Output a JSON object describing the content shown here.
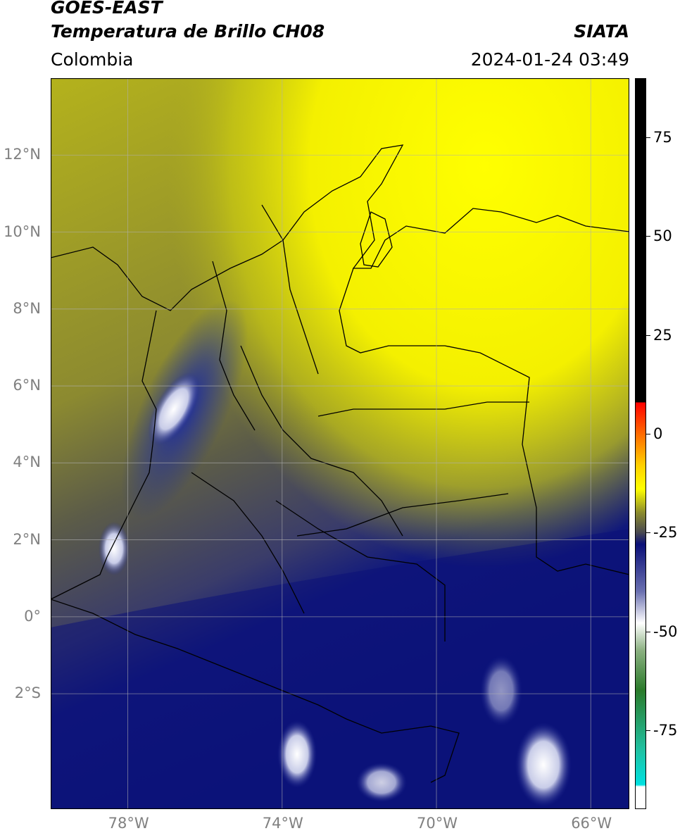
{
  "header": {
    "satellite": "GOES-EAST",
    "product": "Temperatura de Brillo CH08",
    "institution": "SIATA",
    "region": "Colombia",
    "datetime": "2024-01-24 03:49"
  },
  "map": {
    "lon_range": [
      -80,
      -65
    ],
    "lat_range": [
      -5,
      14
    ],
    "lat_ticks": [
      {
        "value": 12,
        "label": "12°N"
      },
      {
        "value": 10,
        "label": "10°N"
      },
      {
        "value": 8,
        "label": "8°N"
      },
      {
        "value": 6,
        "label": "6°N"
      },
      {
        "value": 4,
        "label": "4°N"
      },
      {
        "value": 2,
        "label": "2°N"
      },
      {
        "value": 0,
        "label": "0°"
      },
      {
        "value": -2,
        "label": "2°S"
      }
    ],
    "lon_ticks": [
      {
        "value": -78,
        "label": "78°W"
      },
      {
        "value": -74,
        "label": "74°W"
      },
      {
        "value": -70,
        "label": "70°W"
      },
      {
        "value": -66,
        "label": "66°W"
      }
    ],
    "grid": true,
    "colors": {
      "warm_yellow": "#ffff00",
      "olive": "#8a8a2c",
      "gray_olive": "#555745",
      "navy": "#0a0f78",
      "light_blue": "#9aa0d0",
      "white": "#ffffff",
      "green": "#5a8a4a"
    }
  },
  "colorbar": {
    "range": [
      -95,
      90
    ],
    "ticks": [
      {
        "value": 75,
        "label": "75"
      },
      {
        "value": 50,
        "label": "50"
      },
      {
        "value": 25,
        "label": "25"
      },
      {
        "value": 0,
        "label": "0"
      },
      {
        "value": -25,
        "label": "-25"
      },
      {
        "value": -50,
        "label": "-50"
      },
      {
        "value": -75,
        "label": "-75"
      }
    ],
    "stops": [
      {
        "value": 90,
        "color": "#000000"
      },
      {
        "value": 8,
        "color": "#000000"
      },
      {
        "value": 7.9,
        "color": "#ff0000"
      },
      {
        "value": 0,
        "color": "#ff6a00"
      },
      {
        "value": -8,
        "color": "#ffd000"
      },
      {
        "value": -14,
        "color": "#ffff00"
      },
      {
        "value": -20,
        "color": "#8a8a2c"
      },
      {
        "value": -25,
        "color": "#4a4a50"
      },
      {
        "value": -28,
        "color": "#0a0f78"
      },
      {
        "value": -40,
        "color": "#6a70b0"
      },
      {
        "value": -48,
        "color": "#ffffff"
      },
      {
        "value": -55,
        "color": "#8ab080"
      },
      {
        "value": -65,
        "color": "#2a7a2a"
      },
      {
        "value": -80,
        "color": "#20c0a0"
      },
      {
        "value": -89,
        "color": "#00e0e0"
      },
      {
        "value": -89.5,
        "color": "#ffffff"
      },
      {
        "value": -95,
        "color": "#ffffff"
      }
    ]
  }
}
